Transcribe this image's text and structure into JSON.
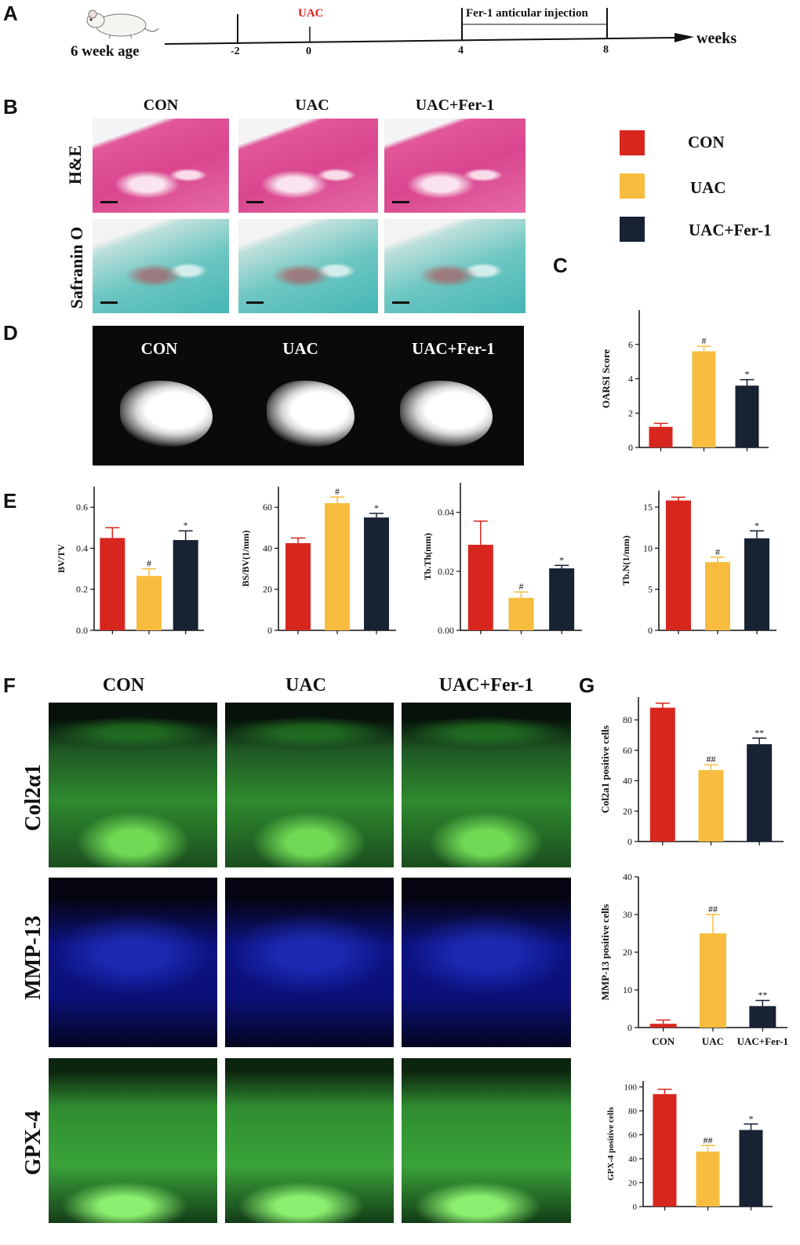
{
  "panels": {
    "a": "A",
    "b": "B",
    "c": "C",
    "d": "D",
    "e": "E",
    "f": "F",
    "g": "G"
  },
  "timeline": {
    "age_label": "6 week age",
    "uac_label": "UAC",
    "injection_label": "Fer-1 anticular injection",
    "axis_label": "weeks",
    "ticks": [
      "-2",
      "0",
      "4",
      "8"
    ],
    "colors": {
      "uac": "#e02020"
    }
  },
  "histology": {
    "columns": [
      "CON",
      "UAC",
      "UAC+Fer-1"
    ],
    "rows": [
      "H&E",
      "Safranin O"
    ]
  },
  "legend": {
    "items": [
      {
        "label": "CON",
        "color": "#d7261e"
      },
      {
        "label": "UAC",
        "color": "#f8bd3e"
      },
      {
        "label": "UAC+Fer-1",
        "color": "#172232"
      }
    ]
  },
  "microct": {
    "labels": [
      "CON",
      "UAC",
      "UAC+Fer-1"
    ]
  },
  "fluorescence": {
    "columns": [
      "CON",
      "UAC",
      "UAC+Fer-1"
    ],
    "rows": [
      "Col2α1",
      "MMP-13",
      "GPX-4"
    ]
  },
  "chart_data": [
    {
      "id": "oarsi",
      "type": "bar",
      "categories": [
        "CON",
        "UAC",
        "UAC+Fer-1"
      ],
      "values": [
        1.2,
        5.6,
        3.6
      ],
      "errors": [
        0.2,
        0.3,
        0.35
      ],
      "annotations": [
        "",
        "#",
        "*"
      ],
      "ylabel": "OARSI Score",
      "ylim": [
        0,
        8
      ],
      "yticks": [
        0,
        2,
        4,
        6
      ],
      "xlabels_visible": false
    },
    {
      "id": "bvtv",
      "type": "bar",
      "categories": [
        "CON",
        "UAC",
        "UAC+Fer-1"
      ],
      "values": [
        0.45,
        0.265,
        0.44
      ],
      "errors": [
        0.05,
        0.035,
        0.045
      ],
      "annotations": [
        "",
        "#",
        "*"
      ],
      "ylabel": "BV/TV",
      "ylim": [
        0,
        0.7
      ],
      "yticks": [
        0.0,
        0.2,
        0.4,
        0.6
      ],
      "tick_labels": [
        "0.0",
        "0.2",
        "0.4",
        "0.6"
      ],
      "xlabels_visible": false
    },
    {
      "id": "bsbv",
      "type": "bar",
      "categories": [
        "CON",
        "UAC",
        "UAC+Fer-1"
      ],
      "values": [
        42.5,
        62.0,
        55.0
      ],
      "errors": [
        2.5,
        3.0,
        2.0
      ],
      "annotations": [
        "",
        "#",
        "*"
      ],
      "ylabel": "BS/BV(1/mm)",
      "ylim": [
        0,
        70
      ],
      "yticks": [
        0,
        20,
        40,
        60
      ],
      "xlabels_visible": false
    },
    {
      "id": "tbth",
      "type": "bar",
      "categories": [
        "CON",
        "UAC",
        "UAC+Fer-1"
      ],
      "values": [
        0.029,
        0.011,
        0.021
      ],
      "errors": [
        0.008,
        0.002,
        0.001
      ],
      "annotations": [
        "",
        "#",
        "*"
      ],
      "ylabel": "Tb.Th(mm)",
      "ylim": [
        0,
        0.05
      ],
      "yticks": [
        0.0,
        0.02,
        0.04
      ],
      "tick_labels": [
        "0.00",
        "0.02",
        "0.04"
      ],
      "xlabels_visible": false
    },
    {
      "id": "tbn",
      "type": "bar",
      "categories": [
        "CON",
        "UAC",
        "UAC+Fer-1"
      ],
      "values": [
        15.8,
        8.3,
        11.2
      ],
      "errors": [
        0.4,
        0.6,
        0.9
      ],
      "annotations": [
        "",
        "#",
        "*"
      ],
      "ylabel": "Tb.N(1/mm)",
      "ylim": [
        0,
        17
      ],
      "yticks": [
        0,
        5,
        10,
        15
      ],
      "xlabels_visible": false
    },
    {
      "id": "col2a1",
      "type": "bar",
      "categories": [
        "CON",
        "UAC",
        "UAC+Fer-1"
      ],
      "values": [
        88,
        47,
        64
      ],
      "errors": [
        3,
        3.5,
        4
      ],
      "annotations": [
        "",
        "##",
        "**"
      ],
      "ylabel": "Col2a1 positive cells",
      "ylim": [
        0,
        95
      ],
      "yticks": [
        0,
        20,
        40,
        60,
        80
      ],
      "xlabels_visible": false
    },
    {
      "id": "mmp13",
      "type": "bar",
      "categories": [
        "CON",
        "UAC",
        "UAC+Fer-1"
      ],
      "values": [
        1.0,
        25.0,
        5.7
      ],
      "errors": [
        1.0,
        5.0,
        1.5
      ],
      "annotations": [
        "",
        "##",
        "**"
      ],
      "ylabel": "MMP-13 positive cells",
      "ylim": [
        0,
        40
      ],
      "yticks": [
        0,
        10,
        20,
        30,
        40
      ],
      "xlabels_visible": true
    },
    {
      "id": "gpx4",
      "type": "bar",
      "categories": [
        "CON",
        "UAC",
        "UAC+Fer-1"
      ],
      "values": [
        94,
        46,
        64
      ],
      "errors": [
        4,
        5,
        5
      ],
      "annotations": [
        "",
        "##",
        "*"
      ],
      "ylabel": "GPX-4 positive cells",
      "ylim": [
        0,
        105
      ],
      "yticks": [
        0,
        20,
        40,
        60,
        80,
        100
      ],
      "xlabels_visible": false
    }
  ]
}
